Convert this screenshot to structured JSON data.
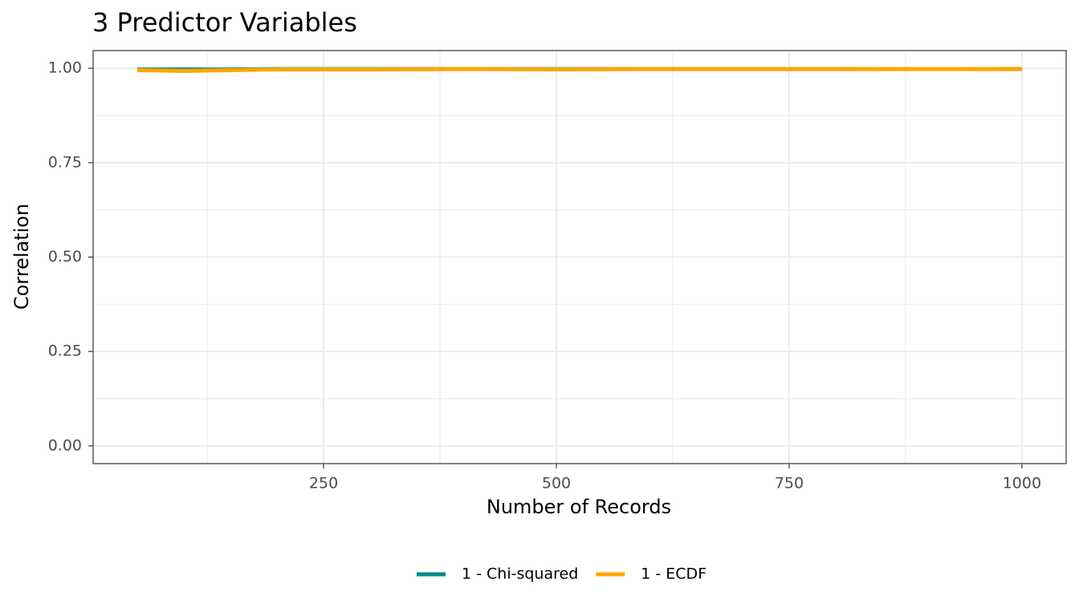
{
  "chart_data": {
    "type": "line",
    "title": "3 Predictor Variables",
    "x_label": "Number of Records",
    "y_label": "Correlation",
    "x": [
      50,
      100,
      150,
      200,
      250,
      300,
      400,
      500,
      600,
      700,
      800,
      900,
      1000
    ],
    "series": [
      {
        "name": "1 - Chi-squared",
        "color": "#008b8b",
        "values": [
          0.999,
          0.999,
          0.999,
          1.0,
          1.0,
          1.0,
          1.0,
          1.0,
          1.0,
          1.0,
          1.0,
          0.999,
          1.0
        ]
      },
      {
        "name": "1 - ECDF",
        "color": "#ffa500",
        "values": [
          0.995,
          0.993,
          0.995,
          0.997,
          0.997,
          0.997,
          0.998,
          0.997,
          0.998,
          0.998,
          0.998,
          0.998,
          0.998
        ]
      }
    ],
    "xlim": [
      2.5,
      1047.5
    ],
    "xticks": [
      250,
      500,
      750,
      1000
    ],
    "xminor": [
      125,
      375,
      625,
      875
    ],
    "ylim": [
      -0.047,
      1.047
    ],
    "yticks": [
      {
        "value": 0,
        "label": "0.00"
      },
      {
        "value": 0.25,
        "label": "0.25"
      },
      {
        "value": 0.5,
        "label": "0.50"
      },
      {
        "value": 0.75,
        "label": "0.75"
      },
      {
        "value": 1,
        "label": "1.00"
      }
    ],
    "yminor": [
      0.125,
      0.375,
      0.625,
      0.875
    ],
    "grid": true,
    "legend": "bottom"
  }
}
